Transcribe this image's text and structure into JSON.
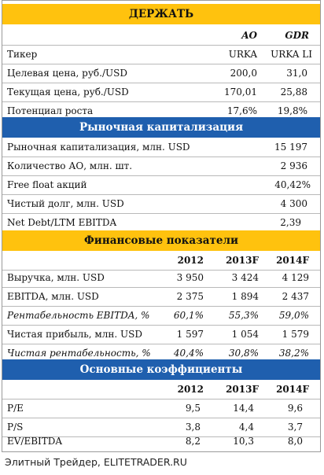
{
  "header": {
    "rating": "ДЕРЖАТЬ"
  },
  "price_block": {
    "col_ao": "AO",
    "col_gdr": "GDR",
    "rows": [
      {
        "label": "Тикер",
        "ao": "URKA",
        "gdr": "URKA LI"
      },
      {
        "label": "Целевая цена, руб./USD",
        "ao": "200,0",
        "gdr": "31,0"
      },
      {
        "label": "Текущая цена, руб./USD",
        "ao": "170,01",
        "gdr": "25,88"
      },
      {
        "label": "Потенциал роста",
        "ao": "17,6%",
        "gdr": "19,8%"
      }
    ]
  },
  "market_cap": {
    "title": "Рыночная капитализация",
    "rows": [
      {
        "label": "Рыночная капитализация, млн. USD",
        "value": "15 197"
      },
      {
        "label": "Количество АО, млн. шт.",
        "value": "2 936"
      },
      {
        "label": "Free float акций",
        "value": "40,42%"
      },
      {
        "label": "Чистый долг, млн. USD",
        "value": "4 300"
      },
      {
        "label": "Net Debt/LTM EBITDA",
        "value": "2,39"
      }
    ]
  },
  "financials": {
    "title": "Финансовые показатели",
    "years": [
      "2012",
      "2013F",
      "2014F"
    ],
    "rows": [
      {
        "label": "Выручка, млн. USD",
        "values": [
          "3 950",
          "3 424",
          "4 129"
        ]
      },
      {
        "label": "EBITDA, млн. USD",
        "values": [
          "2 375",
          "1 894",
          "2 437"
        ]
      },
      {
        "label": "Рентабельность EBITDA, %",
        "values": [
          "60,1%",
          "55,3%",
          "59,0%"
        ]
      },
      {
        "label": "Чистая прибыль, млн. USD",
        "values": [
          "1 597",
          "1 054",
          "1 579"
        ]
      },
      {
        "label": "Чистая рентабельность, %",
        "values": [
          "40,4%",
          "30,8%",
          "38,2%"
        ]
      }
    ]
  },
  "ratios": {
    "title": "Основные коэффициенты",
    "years": [
      "2012",
      "2013F",
      "2014F"
    ],
    "rows": [
      {
        "label": "P/E",
        "values": [
          "9,5",
          "14,4",
          "9,6"
        ]
      },
      {
        "label": "P/S",
        "values": [
          "3,8",
          "4,4",
          "3,7"
        ]
      },
      {
        "label": "EV/EBITDA",
        "values": [
          "8,2",
          "10,3",
          "8,0"
        ]
      }
    ]
  },
  "footer": {
    "source": "Элитный Трейдер, ELITETRADER.RU"
  },
  "colors": {
    "accent_yellow": "#ffc20e",
    "accent_blue": "#1f5fae"
  }
}
